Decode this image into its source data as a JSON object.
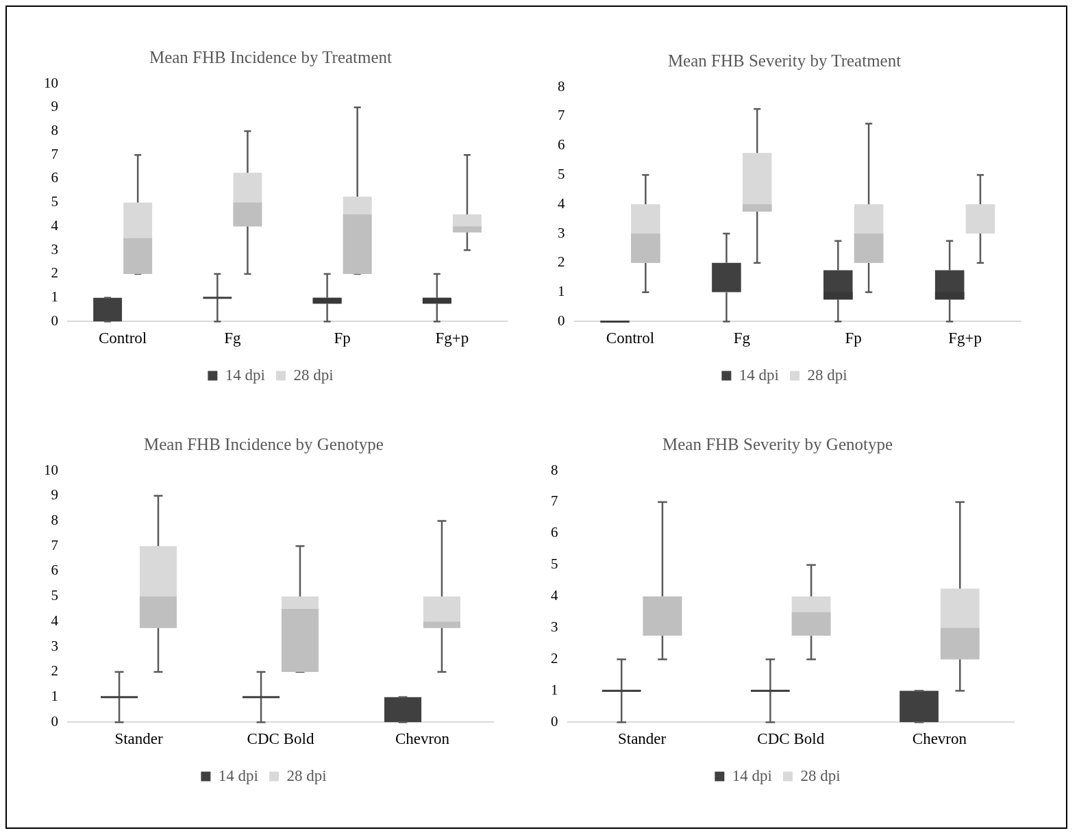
{
  "chart_data": [
    {
      "type": "box",
      "title": "Mean FHB Incidence by Treatment",
      "categories": [
        "Control",
        "Fg",
        "Fp",
        "Fg+p"
      ],
      "ylim": [
        0,
        10
      ],
      "yticks": [
        0,
        1,
        2,
        3,
        4,
        5,
        6,
        7,
        8,
        9,
        10
      ],
      "grid": false,
      "legend": "bottom",
      "series": [
        {
          "name": "14 dpi",
          "color": "#404040",
          "boxes": [
            {
              "low": 0,
              "q1": 0,
              "median": 0,
              "q3": 1,
              "high": 1
            },
            {
              "low": 0,
              "q1": 1,
              "median": 1,
              "q3": 1,
              "high": 2
            },
            {
              "low": 0,
              "q1": 0.75,
              "median": 1,
              "q3": 1,
              "high": 2
            },
            {
              "low": 0,
              "q1": 0.75,
              "median": 1,
              "q3": 1,
              "high": 2
            }
          ]
        },
        {
          "name": "28 dpi",
          "color": "#d9d9d9",
          "boxes": [
            {
              "low": 2,
              "q1": 2,
              "median": 3.5,
              "q3": 5,
              "high": 7
            },
            {
              "low": 2,
              "q1": 4,
              "median": 5,
              "q3": 6.25,
              "high": 8
            },
            {
              "low": 2,
              "q1": 2,
              "median": 4.5,
              "q3": 5.25,
              "high": 9
            },
            {
              "low": 3,
              "q1": 3.75,
              "median": 4,
              "q3": 4.5,
              "high": 7
            }
          ]
        }
      ]
    },
    {
      "type": "box",
      "title": "Mean FHB Severity by Treatment",
      "categories": [
        "Control",
        "Fg",
        "Fp",
        "Fg+p"
      ],
      "ylim": [
        0,
        8
      ],
      "yticks": [
        0,
        1,
        2,
        3,
        4,
        5,
        6,
        7,
        8
      ],
      "grid": false,
      "legend": "bottom",
      "series": [
        {
          "name": "14 dpi",
          "color": "#404040",
          "boxes": [
            {
              "low": 0,
              "q1": 0,
              "median": 0,
              "q3": 0,
              "high": 0
            },
            {
              "low": 0,
              "q1": 1,
              "median": 1,
              "q3": 2,
              "high": 3
            },
            {
              "low": 0,
              "q1": 0.75,
              "median": 1,
              "q3": 1.75,
              "high": 2.75
            },
            {
              "low": 0,
              "q1": 0.75,
              "median": 1,
              "q3": 1.75,
              "high": 2.75
            }
          ]
        },
        {
          "name": "28 dpi",
          "color": "#d9d9d9",
          "boxes": [
            {
              "low": 1,
              "q1": 2,
              "median": 3,
              "q3": 4,
              "high": 5
            },
            {
              "low": 2,
              "q1": 3.75,
              "median": 4,
              "q3": 5.75,
              "high": 7.25
            },
            {
              "low": 1,
              "q1": 2,
              "median": 3,
              "q3": 4,
              "high": 6.75
            },
            {
              "low": 2,
              "q1": 3,
              "median": 3,
              "q3": 4,
              "high": 5
            }
          ]
        }
      ]
    },
    {
      "type": "box",
      "title": "Mean FHB Incidence by Genotype",
      "categories": [
        "Stander",
        "CDC Bold",
        "Chevron"
      ],
      "ylim": [
        0,
        10
      ],
      "yticks": [
        0,
        1,
        2,
        3,
        4,
        5,
        6,
        7,
        8,
        9,
        10
      ],
      "grid": false,
      "legend": "bottom",
      "series": [
        {
          "name": "14 dpi",
          "color": "#404040",
          "boxes": [
            {
              "low": 0,
              "q1": 1,
              "median": 1,
              "q3": 1,
              "high": 2
            },
            {
              "low": 0,
              "q1": 1,
              "median": 1,
              "q3": 1,
              "high": 2
            },
            {
              "low": 0,
              "q1": 0,
              "median": 0,
              "q3": 1,
              "high": 1
            }
          ]
        },
        {
          "name": "28 dpi",
          "color": "#d9d9d9",
          "boxes": [
            {
              "low": 2,
              "q1": 3.75,
              "median": 5,
              "q3": 7,
              "high": 9
            },
            {
              "low": 2,
              "q1": 2,
              "median": 4.5,
              "q3": 5,
              "high": 7
            },
            {
              "low": 2,
              "q1": 3.75,
              "median": 4,
              "q3": 5,
              "high": 8
            }
          ]
        }
      ]
    },
    {
      "type": "box",
      "title": "Mean FHB Severity by Genotype",
      "categories": [
        "Stander",
        "CDC Bold",
        "Chevron"
      ],
      "ylim": [
        0,
        8
      ],
      "yticks": [
        0,
        1,
        2,
        3,
        4,
        5,
        6,
        7,
        8
      ],
      "grid": false,
      "legend": "bottom",
      "series": [
        {
          "name": "14 dpi",
          "color": "#404040",
          "boxes": [
            {
              "low": 0,
              "q1": 1,
              "median": 1,
              "q3": 1,
              "high": 2
            },
            {
              "low": 0,
              "q1": 1,
              "median": 1,
              "q3": 1,
              "high": 2
            },
            {
              "low": 0,
              "q1": 0,
              "median": 0,
              "q3": 1,
              "high": 1
            }
          ]
        },
        {
          "name": "28 dpi",
          "color": "#d9d9d9",
          "boxes": [
            {
              "low": 2,
              "q1": 2.75,
              "median": 4,
              "q3": 4,
              "high": 7
            },
            {
              "low": 2,
              "q1": 2.75,
              "median": 3.5,
              "q3": 4,
              "high": 5
            },
            {
              "low": 1,
              "q1": 2,
              "median": 3,
              "q3": 4.25,
              "high": 7
            }
          ]
        }
      ]
    }
  ]
}
